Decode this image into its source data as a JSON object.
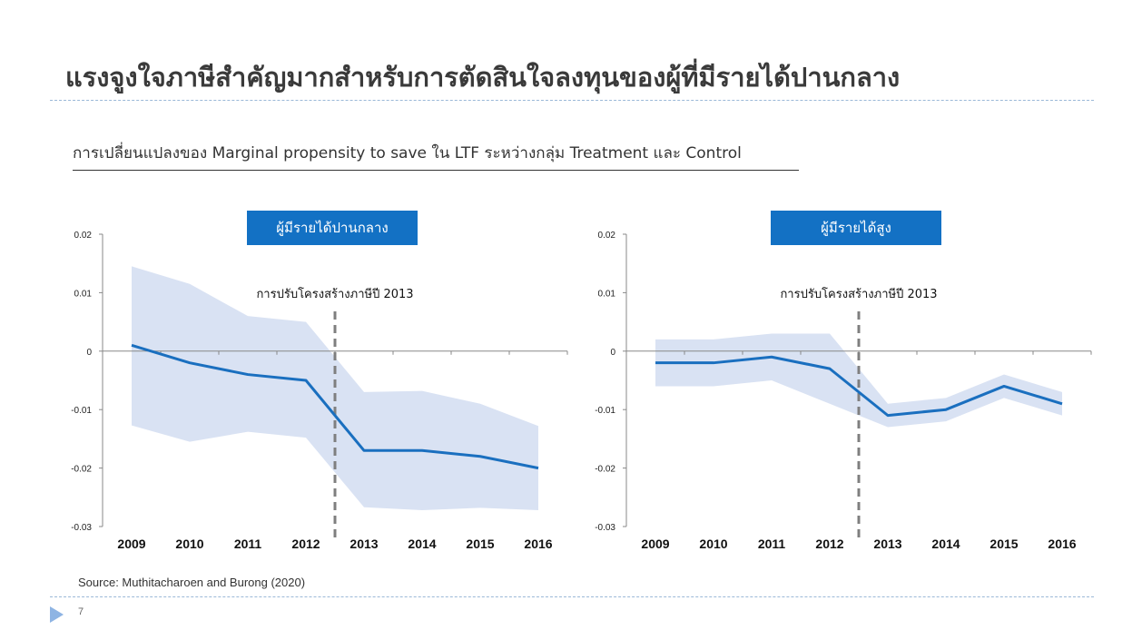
{
  "slide": {
    "title": "แรงจูงใจภาษีสำคัญมากสำหรับการตัดสินใจลงทุนของผู้ที่มีรายได้ปานกลาง",
    "subtitle": "การเปลี่ยนแปลงของ Marginal propensity to save ใน LTF ระหว่างกลุ่ม Treatment และ Control",
    "source": "Source: Muthitacharoen and Burong (2020)",
    "page_number": "7"
  },
  "colors": {
    "line": "#1a6fbf",
    "band": "#d9e2f3",
    "title_box": "#1371c4",
    "reform_line": "#7f7f7f"
  },
  "chart_data": [
    {
      "type": "line",
      "title": "ผู้มีรายได้ปานกลาง",
      "x": [
        "2009",
        "2010",
        "2011",
        "2012",
        "2013",
        "2014",
        "2015",
        "2016"
      ],
      "series": [
        {
          "values": [
            0.001,
            -0.002,
            -0.004,
            -0.005,
            -0.017,
            -0.017,
            -0.018,
            -0.02
          ],
          "band_upper": [
            0.0145,
            0.0115,
            0.006,
            0.005,
            -0.007,
            -0.0068,
            -0.009,
            -0.0128
          ],
          "band_lower": [
            -0.0127,
            -0.0155,
            -0.0138,
            -0.0148,
            -0.0267,
            -0.0272,
            -0.0268,
            -0.0272
          ]
        }
      ],
      "ylim": [
        -0.03,
        0.02
      ],
      "yticks": [
        "0.02",
        "0.01",
        "0",
        "-0.01",
        "-0.02",
        "-0.03"
      ],
      "annotation": {
        "label": "การปรับโครงสร้างภาษีปี 2013",
        "between": [
          "2012",
          "2013"
        ]
      },
      "grid": false,
      "legend": "none"
    },
    {
      "type": "line",
      "title": "ผู้มีรายได้สูง",
      "x": [
        "2009",
        "2010",
        "2011",
        "2012",
        "2013",
        "2014",
        "2015",
        "2016"
      ],
      "series": [
        {
          "values": [
            -0.002,
            -0.002,
            -0.001,
            -0.003,
            -0.011,
            -0.01,
            -0.006,
            -0.009
          ],
          "band_upper": [
            0.002,
            0.002,
            0.003,
            0.003,
            -0.009,
            -0.008,
            -0.004,
            -0.007
          ],
          "band_lower": [
            -0.006,
            -0.006,
            -0.005,
            -0.009,
            -0.013,
            -0.012,
            -0.008,
            -0.011
          ]
        }
      ],
      "ylim": [
        -0.03,
        0.02
      ],
      "yticks": [
        "0.02",
        "0.01",
        "0",
        "-0.01",
        "-0.02",
        "-0.03"
      ],
      "annotation": {
        "label": "การปรับโครงสร้างภาษีปี 2013",
        "between": [
          "2012",
          "2013"
        ]
      },
      "grid": false,
      "legend": "none"
    }
  ]
}
